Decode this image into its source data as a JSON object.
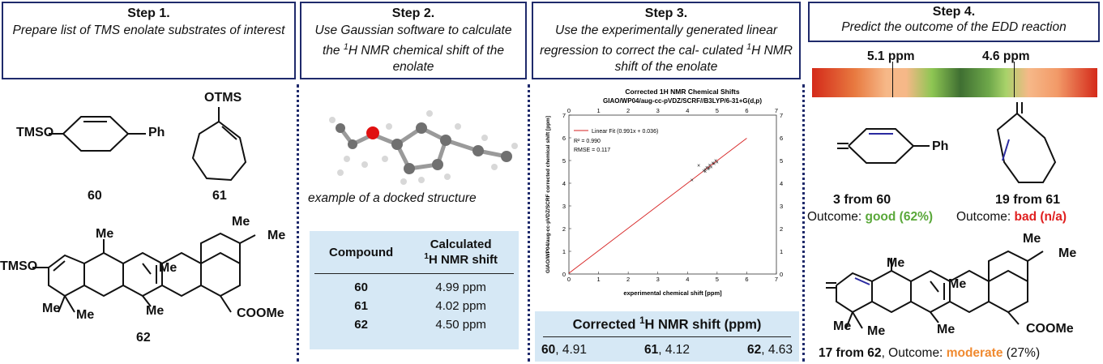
{
  "steps": [
    {
      "title": "Step 1.",
      "desc": "Prepare list of TMS enolate substrates of interest"
    },
    {
      "title": "Step 2.",
      "desc_pre": "Use Gaussian software to calculate the ",
      "desc_sup": "1",
      "desc_post": "H NMR chemical shift of the enolate"
    },
    {
      "title": "Step 3.",
      "desc_pre": "Use the experimentally generated linear regression to correct the cal- culated ",
      "desc_sup": "1",
      "desc_post": "H NMR shift of the enolate"
    },
    {
      "title": "Step 4.",
      "desc": "Predict the outcome of the EDD reaction"
    }
  ],
  "step1": {
    "labels": {
      "tmso": "TMSO",
      "ph": "Ph",
      "otms": "OTMS",
      "tmso2": "TMSO",
      "me": "Me",
      "coome": "COOMe"
    },
    "numbers": [
      "60",
      "61",
      "62"
    ]
  },
  "step2": {
    "caption": "example of a docked structure",
    "table": {
      "head_compound": "Compound",
      "head_calc_line1": "Calculated",
      "head_calc_sup": "1",
      "head_calc_line2": "H NMR shift",
      "rows": [
        {
          "compound": "60",
          "shift": "4.99 ppm"
        },
        {
          "compound": "61",
          "shift": "4.02 ppm"
        },
        {
          "compound": "62",
          "shift": "4.50 ppm"
        }
      ]
    }
  },
  "step3": {
    "corrected_title_pre": "Corrected ",
    "corrected_title_sup": "1",
    "corrected_title_post": "H NMR shift (ppm)",
    "corrected": [
      {
        "compound": "60",
        "value": ", 4.91"
      },
      {
        "compound": "61",
        "value": ", 4.12"
      },
      {
        "compound": "62",
        "value": ", 4.63"
      }
    ]
  },
  "chart_data": {
    "type": "scatter",
    "title": "Corrected 1H NMR Chemical Shifts",
    "subtitle": "GIAO/WP04/aug-cc-pVDZ/SCRF//B3LYP/6-31+G(d,p)",
    "xlabel": "experimental chemical shift [ppm]",
    "ylabel": "GIAO/WP04/aug-cc-pVDZ/SCRF corrected chemical shift [ppm]",
    "xlim": [
      0,
      7
    ],
    "ylim": [
      0,
      7
    ],
    "ticks": [
      "0",
      "1",
      "2",
      "3",
      "4",
      "5",
      "6",
      "7"
    ],
    "legend": "Linear Fit (0.991x + 0.036)",
    "r2": "R² = 0.990",
    "rmse": "RMSE = 0.117",
    "fit": {
      "slope": 0.991,
      "intercept": 0.036,
      "x_range": [
        0,
        6
      ]
    },
    "points": [
      {
        "x": 4.15,
        "y": 4.15
      },
      {
        "x": 4.38,
        "y": 4.78
      },
      {
        "x": 4.55,
        "y": 4.55
      },
      {
        "x": 4.6,
        "y": 4.6
      },
      {
        "x": 4.65,
        "y": 4.7
      },
      {
        "x": 4.7,
        "y": 4.62
      },
      {
        "x": 4.75,
        "y": 4.8
      },
      {
        "x": 4.8,
        "y": 4.72
      },
      {
        "x": 4.85,
        "y": 4.9
      },
      {
        "x": 4.9,
        "y": 4.85
      },
      {
        "x": 4.95,
        "y": 5.0
      },
      {
        "x": 5.0,
        "y": 4.92
      },
      {
        "x": 4.6,
        "y": 4.52
      },
      {
        "x": 4.72,
        "y": 4.68
      }
    ],
    "point_color": "#222222",
    "line_color": "#d62020"
  },
  "step4": {
    "marker1": "5.1 ppm",
    "marker2": "4.6 ppm",
    "ph": "Ph",
    "me": "Me",
    "coome": "COOMe",
    "product1": {
      "label_num": "3",
      "label_rest": " from 60",
      "outcome_pre": "Outcome: ",
      "outcome_word": "good (62%)"
    },
    "product2": {
      "label_num": "19",
      "label_rest": " from 61",
      "outcome_pre": "Outcome: ",
      "outcome_word": "bad (n/a)"
    },
    "product3": {
      "label_num": "17",
      "label_rest": " from 62",
      "outcome_pre": ", Outcome: ",
      "outcome_word": "moderate",
      "outcome_post": " (27%)"
    },
    "colors": {
      "good": "#5aa83a",
      "bad": "#e02020",
      "moderate": "#f08a30"
    }
  }
}
